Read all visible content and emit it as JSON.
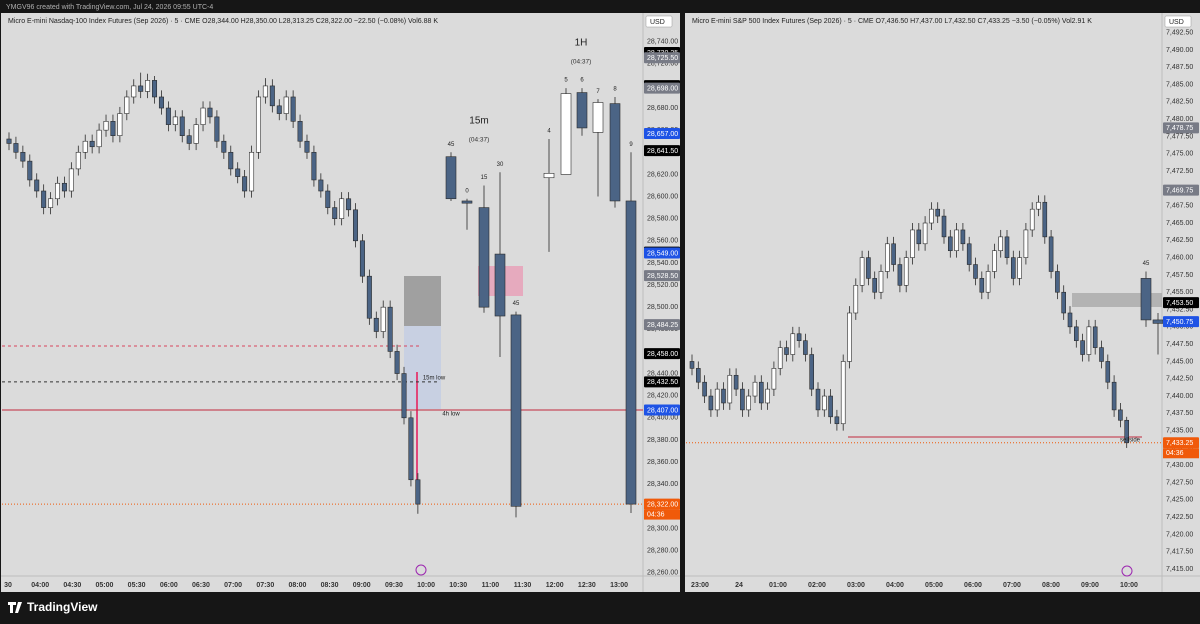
{
  "header": {
    "credit": "YMGV96 created with TradingView.com, Jul 24, 2026 09:55 UTC-4"
  },
  "footer": {
    "brand": "TradingView"
  },
  "chart_data": [
    {
      "type": "candlestick",
      "legend": "Micro E-mini Nasdaq-100 Index Futures (Sep 2026) · 5 · CME  O28,344.00  H28,350.00  L28,313.25  C28,322.00  −22.50 (−0.08%)  Vol6.88 K",
      "currency": "USD",
      "up_color": "#ffffff",
      "down_color": "#4b6485",
      "ylim": [
        28257,
        28765
      ],
      "yticks": [
        {
          "value": 28260,
          "label": "28,260.00"
        },
        {
          "value": 28280,
          "label": "28,280.00"
        },
        {
          "value": 28300,
          "label": "28,300.00"
        },
        {
          "value": 28320,
          "label": "28,320.00"
        },
        {
          "value": 28340,
          "label": "28,340.00"
        },
        {
          "value": 28360,
          "label": "28,360.00"
        },
        {
          "value": 28380,
          "label": "28,380.00"
        },
        {
          "value": 28400,
          "label": "28,400.00"
        },
        {
          "value": 28420,
          "label": "28,420.00"
        },
        {
          "value": 28440,
          "label": "28,440.00"
        },
        {
          "value": 28460,
          "label": "28,460.00"
        },
        {
          "value": 28480,
          "label": "28,480.00"
        },
        {
          "value": 28500,
          "label": "28,500.00"
        },
        {
          "value": 28520,
          "label": "28,520.00"
        },
        {
          "value": 28540,
          "label": "28,540.00"
        },
        {
          "value": 28560,
          "label": "28,560.00"
        },
        {
          "value": 28580,
          "label": "28,580.00"
        },
        {
          "value": 28600,
          "label": "28,600.00"
        },
        {
          "value": 28620,
          "label": "28,620.00"
        },
        {
          "value": 28640,
          "label": "28,640.00"
        },
        {
          "value": 28660,
          "label": "28,660.00"
        },
        {
          "value": 28680,
          "label": "28,680.00"
        },
        {
          "value": 28700,
          "label": "28,700.00"
        },
        {
          "value": 28720,
          "label": "28,720.00"
        },
        {
          "value": 28740,
          "label": "28,740.00"
        }
      ],
      "x_labels": [
        "30",
        "04:00",
        "04:30",
        "05:00",
        "05:30",
        "06:00",
        "06:30",
        "07:00",
        "07:30",
        "08:00",
        "08:30",
        "09:00",
        "09:30",
        "10:00",
        "10:30",
        "11:00",
        "11:30",
        "12:00",
        "12:30",
        "13:00"
      ],
      "open": [
        28652,
        28648,
        28640,
        28632,
        28615,
        28605,
        28590,
        28598,
        28612,
        28605,
        28625,
        28640,
        28650,
        28645,
        28660,
        28668,
        28655,
        28675,
        28690,
        28700,
        28695,
        28705,
        28690,
        28680,
        28665,
        28672,
        28655,
        28648,
        28665,
        28680,
        28672,
        28650,
        28640,
        28625,
        28618,
        28605,
        28640,
        28690,
        28700,
        28682,
        28675,
        28690,
        28668,
        28650,
        28640,
        28615,
        28605,
        28590,
        28580,
        28598,
        28588,
        28560,
        28528,
        28490,
        28478,
        28500,
        28460,
        28440,
        28400,
        28344
      ],
      "high": [
        28658,
        28654,
        28646,
        28638,
        28621,
        28611,
        28604,
        28618,
        28618,
        28631,
        28646,
        28656,
        28656,
        28666,
        28674,
        28674,
        28681,
        28696,
        28706,
        28712,
        28711,
        28709,
        28696,
        28686,
        28678,
        28678,
        28661,
        28671,
        28686,
        28686,
        28678,
        28656,
        28646,
        28631,
        28624,
        28646,
        28696,
        28707,
        28706,
        28688,
        28696,
        28696,
        28674,
        28656,
        28646,
        28621,
        28611,
        28596,
        28604,
        28604,
        28594,
        28566,
        28534,
        28496,
        28506,
        28506,
        28466,
        28446,
        28406,
        28350
      ],
      "low": [
        28642,
        28634,
        28626,
        28609,
        28599,
        28584,
        28584,
        28592,
        28599,
        28599,
        28619,
        28634,
        28639,
        28639,
        28654,
        28649,
        28649,
        28669,
        28684,
        28689,
        28689,
        28684,
        28674,
        28659,
        28659,
        28649,
        28642,
        28642,
        28659,
        28666,
        28644,
        28634,
        28619,
        28612,
        28599,
        28599,
        28634,
        28684,
        28676,
        28669,
        28669,
        28662,
        28644,
        28634,
        28609,
        28599,
        28584,
        28574,
        28574,
        28582,
        28554,
        28522,
        28484,
        28472,
        28472,
        28454,
        28434,
        28394,
        28338,
        28313.25
      ],
      "close": [
        28648,
        28640,
        28632,
        28615,
        28605,
        28590,
        28598,
        28612,
        28605,
        28625,
        28640,
        28650,
        28645,
        28660,
        28668,
        28655,
        28675,
        28690,
        28700,
        28695,
        28705,
        28690,
        28680,
        28665,
        28672,
        28655,
        28648,
        28665,
        28680,
        28672,
        28650,
        28640,
        28625,
        28618,
        28605,
        28640,
        28690,
        28700,
        28682,
        28675,
        28690,
        28668,
        28650,
        28640,
        28615,
        28605,
        28590,
        28580,
        28598,
        28588,
        28560,
        28528,
        28490,
        28478,
        28500,
        28460,
        28440,
        28400,
        28344,
        28322
      ],
      "overlays": [
        {
          "title": "15m",
          "countdown": "(04:37)",
          "labels": [
            "45",
            "0",
            "15",
            "30",
            "45"
          ],
          "open": [
            28636,
            28596,
            28590,
            28548,
            28493
          ],
          "high": [
            28640,
            28598,
            28610,
            28622,
            28496
          ],
          "low": [
            28596,
            28570,
            28495,
            28455,
            28310
          ],
          "close": [
            28598,
            28594,
            28500,
            28492,
            28320
          ]
        },
        {
          "title": "1H",
          "countdown": "(04:37)",
          "labels": [
            "4",
            "5",
            "6",
            "7",
            "8",
            "9"
          ],
          "open": [
            28617,
            28620,
            28694,
            28658,
            28684,
            28596
          ],
          "high": [
            28652,
            28698,
            28698,
            28688,
            28690,
            28640
          ],
          "low": [
            28550,
            28620,
            28655,
            28600,
            28590,
            28314
          ],
          "close": [
            28621,
            28693,
            28662,
            28685,
            28596,
            28322
          ]
        }
      ],
      "price_tags": [
        {
          "value": 28730.25,
          "label": "28,730.25",
          "color": "#000000"
        },
        {
          "value": 28725.5,
          "label": "28,725.50",
          "color": "#787b86"
        },
        {
          "value": 28700.25,
          "label": "28,700.25",
          "color": "#000000"
        },
        {
          "value": 28698,
          "label": "28,698.00",
          "color": "#787b86"
        },
        {
          "value": 28657,
          "label": "28,657.00",
          "color": "#1e53e5"
        },
        {
          "value": 28641.5,
          "label": "28,641.50",
          "color": "#000000"
        },
        {
          "value": 28549.75,
          "label": "28,549.75",
          "color": "#000000"
        },
        {
          "value": 28549,
          "label": "28,549.00",
          "color": "#1e53e5"
        },
        {
          "value": 28528.5,
          "label": "28,528.50",
          "color": "#787b86"
        },
        {
          "value": 28484.25,
          "label": "28,484.25",
          "color": "#787b86"
        },
        {
          "value": 28458,
          "label": "28,458.00",
          "color": "#000000"
        },
        {
          "value": 28432.5,
          "label": "28,432.50",
          "color": "#000000"
        },
        {
          "value": 28407,
          "label": "28,407.00",
          "color": "#1e53e5"
        },
        {
          "value": 28322,
          "label": "28,322.00",
          "color": "#f05a0a",
          "countdown": "04:36"
        }
      ],
      "annotations": [
        "15m low",
        "4h low"
      ]
    },
    {
      "type": "candlestick",
      "legend": "Micro E-mini S&P 500 Index Futures (Sep 2026) · 5 · CME  O7,436.50  H7,437.00  L7,432.50  C7,433.25  −3.50 (−0.05%)  Vol2.91 K",
      "currency": "USD",
      "up_color": "#ffffff",
      "down_color": "#4b6485",
      "ylim": [
        7414,
        7495.2
      ],
      "yticks": [
        {
          "value": 7415,
          "label": "7,415.00"
        },
        {
          "value": 7417.5,
          "label": "7,417.50"
        },
        {
          "value": 7420,
          "label": "7,420.00"
        },
        {
          "value": 7422.5,
          "label": "7,422.50"
        },
        {
          "value": 7425,
          "label": "7,425.00"
        },
        {
          "value": 7427.5,
          "label": "7,427.50"
        },
        {
          "value": 7430,
          "label": "7,430.00"
        },
        {
          "value": 7432.5,
          "label": "7,432.50"
        },
        {
          "value": 7435,
          "label": "7,435.00"
        },
        {
          "value": 7437.5,
          "label": "7,437.50"
        },
        {
          "value": 7440,
          "label": "7,440.00"
        },
        {
          "value": 7442.5,
          "label": "7,442.50"
        },
        {
          "value": 7445,
          "label": "7,445.00"
        },
        {
          "value": 7447.5,
          "label": "7,447.50"
        },
        {
          "value": 7450,
          "label": "7,450.00"
        },
        {
          "value": 7452.5,
          "label": "7,452.50"
        },
        {
          "value": 7455,
          "label": "7,455.00"
        },
        {
          "value": 7457.5,
          "label": "7,457.50"
        },
        {
          "value": 7460,
          "label": "7,460.00"
        },
        {
          "value": 7462.5,
          "label": "7,462.50"
        },
        {
          "value": 7465,
          "label": "7,465.00"
        },
        {
          "value": 7467.5,
          "label": "7,467.50"
        },
        {
          "value": 7470,
          "label": "7,470.00"
        },
        {
          "value": 7472.5,
          "label": "7,472.50"
        },
        {
          "value": 7475,
          "label": "7,475.00"
        },
        {
          "value": 7477.5,
          "label": "7,477.50"
        },
        {
          "value": 7480,
          "label": "7,480.00"
        },
        {
          "value": 7482.5,
          "label": "7,482.50"
        },
        {
          "value": 7485,
          "label": "7,485.00"
        },
        {
          "value": 7487.5,
          "label": "7,487.50"
        },
        {
          "value": 7490,
          "label": "7,490.00"
        },
        {
          "value": 7492.5,
          "label": "7,492.50"
        }
      ],
      "x_labels": [
        "23:00",
        "24",
        "01:00",
        "02:00",
        "03:00",
        "04:00",
        "05:00",
        "06:00",
        "07:00",
        "08:00",
        "09:00",
        "10:00"
      ],
      "open": [
        7445,
        7444,
        7442,
        7440,
        7438,
        7441,
        7439,
        7443,
        7441,
        7438,
        7440,
        7442,
        7439,
        7441,
        7444,
        7447,
        7446,
        7449,
        7448,
        7446,
        7441,
        7438,
        7440,
        7437,
        7436,
        7445,
        7452,
        7456,
        7460,
        7457,
        7455,
        7458,
        7462,
        7459,
        7456,
        7460,
        7464,
        7462,
        7465,
        7467,
        7466,
        7463,
        7461,
        7464,
        7462,
        7459,
        7457,
        7455,
        7458,
        7461,
        7463,
        7460,
        7457,
        7460,
        7464,
        7467,
        7468,
        7463,
        7458,
        7455,
        7452,
        7450,
        7448,
        7446,
        7450,
        7447,
        7445,
        7442,
        7438,
        7436.5
      ],
      "high": [
        7446,
        7445,
        7443,
        7441,
        7442,
        7442,
        7444,
        7444,
        7442,
        7441,
        7443,
        7443,
        7442,
        7445,
        7448,
        7448,
        7450,
        7450,
        7449,
        7447,
        7442,
        7441,
        7441,
        7438,
        7446,
        7453,
        7457,
        7461,
        7461,
        7458,
        7459,
        7463,
        7463,
        7460,
        7461,
        7465,
        7465,
        7466,
        7468,
        7468,
        7467,
        7464,
        7465,
        7465,
        7463,
        7460,
        7458,
        7459,
        7462,
        7464,
        7464,
        7461,
        7461,
        7465,
        7468,
        7469,
        7469,
        7464,
        7459,
        7456,
        7453,
        7451,
        7449,
        7451,
        7451,
        7448,
        7446,
        7443,
        7439,
        7437
      ],
      "low": [
        7443,
        7441,
        7439,
        7437,
        7437,
        7438,
        7438,
        7440,
        7437,
        7437,
        7439,
        7438,
        7438,
        7440,
        7443,
        7445,
        7445,
        7447,
        7445,
        7440,
        7437,
        7437,
        7436,
        7435,
        7435,
        7444,
        7451,
        7455,
        7456,
        7454,
        7454,
        7457,
        7458,
        7455,
        7455,
        7459,
        7461,
        7461,
        7464,
        7465,
        7462,
        7460,
        7460,
        7461,
        7458,
        7456,
        7454,
        7454,
        7457,
        7460,
        7459,
        7456,
        7456,
        7459,
        7463,
        7466,
        7462,
        7457,
        7454,
        7451,
        7449,
        7447,
        7445,
        7445,
        7446,
        7444,
        7441,
        7437,
        7435.5,
        7432.5
      ],
      "close": [
        7444,
        7442,
        7440,
        7438,
        7441,
        7439,
        7443,
        7441,
        7438,
        7440,
        7442,
        7439,
        7441,
        7444,
        7447,
        7446,
        7449,
        7448,
        7446,
        7441,
        7438,
        7440,
        7437,
        7436,
        7445,
        7452,
        7456,
        7460,
        7457,
        7455,
        7458,
        7462,
        7459,
        7456,
        7460,
        7464,
        7462,
        7465,
        7467,
        7466,
        7463,
        7461,
        7464,
        7462,
        7459,
        7457,
        7455,
        7458,
        7461,
        7463,
        7460,
        7457,
        7460,
        7464,
        7467,
        7468,
        7463,
        7458,
        7455,
        7452,
        7450,
        7448,
        7446,
        7450,
        7447,
        7445,
        7442,
        7438,
        7436.5,
        7433.25
      ],
      "overlays": [
        {
          "labels": [
            "45",
            null
          ],
          "open": [
            7457,
            7451
          ],
          "high": [
            7458,
            7452
          ],
          "low": [
            7450,
            7446
          ],
          "close": [
            7451,
            7450.5
          ]
        }
      ],
      "price_tags": [
        {
          "value": 7478.75,
          "label": "7,478.75",
          "color": "#787b86"
        },
        {
          "value": 7469.75,
          "label": "7,469.75",
          "color": "#787b86"
        },
        {
          "value": 7453.5,
          "label": "7,453.50",
          "color": "#000000"
        },
        {
          "value": 7450.75,
          "label": "7,450.75",
          "color": "#1e53e5"
        },
        {
          "value": 7433.25,
          "label": "7,433.25",
          "color": "#f05a0a",
          "countdown": "04:36"
        }
      ],
      "annotations": [
        "sellside"
      ]
    }
  ]
}
